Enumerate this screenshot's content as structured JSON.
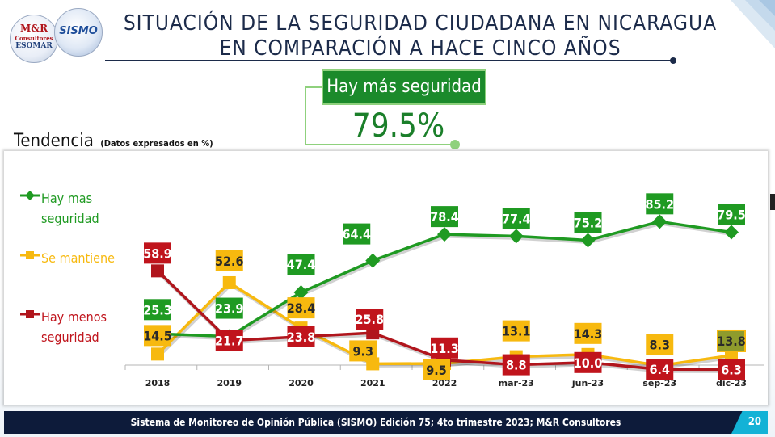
{
  "header": {
    "title": "SITUACIÓN DE LA SEGURIDAD CIUDADANA EN NICARAGUA EN COMPARACIÓN A HACE CINCO AÑOS",
    "logo_left_line1": "M&R",
    "logo_left_line2": "Consultores",
    "logo_left_line3": "ESOMAR",
    "logo_right_text": "SISMO"
  },
  "highlight": {
    "label": "Hay más seguridad",
    "value": "79.5%",
    "color": "#1b8a2b"
  },
  "trend": {
    "title": "Tendencia",
    "subtitle": "(Datos expresados en %)"
  },
  "chart_data": {
    "type": "line",
    "categories": [
      "2018",
      "2019",
      "2020",
      "2021",
      "2022",
      "mar-23",
      "jun-23",
      "sep-23",
      "dic-23"
    ],
    "ylim": [
      0,
      100
    ],
    "grid": false,
    "legend_position": "left",
    "series": [
      {
        "name": "Hay mas\nseguridad",
        "color": "#1f9a22",
        "label_color": "#1f9a22",
        "values": [
          25.3,
          23.9,
          47.4,
          64.4,
          78.4,
          77.4,
          75.2,
          85.2,
          79.5
        ]
      },
      {
        "name": "Se mantiene",
        "color": "#f7b90f",
        "label_color": "#f7b90f",
        "values": [
          14.5,
          52.6,
          28.4,
          9.3,
          9.5,
          13.1,
          14.3,
          8.3,
          13.8
        ]
      },
      {
        "name": "Hay menos\nseguridad",
        "color": "#b0151c",
        "label_color": "#c0141c",
        "values": [
          58.9,
          21.7,
          23.8,
          25.8,
          11.3,
          8.8,
          10.0,
          6.4,
          6.3
        ]
      }
    ]
  },
  "footer": {
    "text": "Sistema de Monitoreo de Opinión Pública (SISMO) Edición 75; 4to trimestre 2023; M&R Consultores",
    "page": "20"
  }
}
